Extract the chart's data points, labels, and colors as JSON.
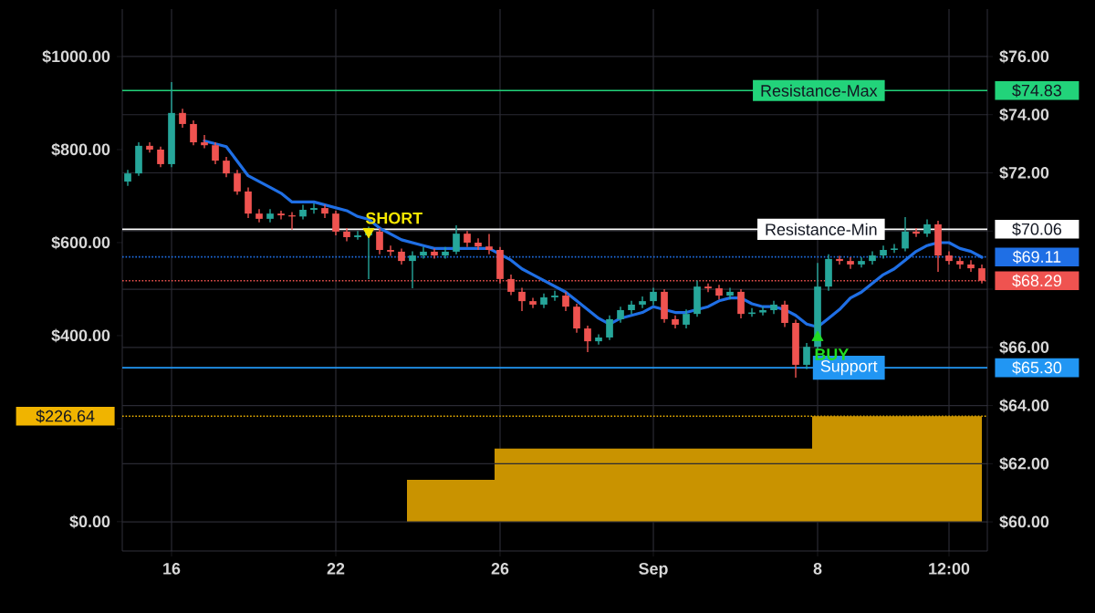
{
  "chart_data": {
    "type": "candlestick",
    "categories": [
      null,
      null,
      null,
      null,
      "16",
      null,
      null,
      null,
      null,
      null,
      null,
      null,
      null,
      null,
      null,
      null,
      null,
      null,
      null,
      "22",
      null,
      null,
      null,
      null,
      null,
      null,
      null,
      null,
      null,
      null,
      null,
      null,
      null,
      null,
      "26",
      null,
      null,
      null,
      null,
      null,
      null,
      null,
      null,
      null,
      null,
      null,
      null,
      null,
      "Sep",
      null,
      null,
      null,
      null,
      null,
      null,
      null,
      null,
      null,
      null,
      null,
      null,
      null,
      null,
      "8",
      null,
      null,
      null,
      null,
      null,
      null,
      null,
      null,
      null,
      null,
      null,
      "12:00",
      null,
      null,
      null
    ],
    "series": [
      {
        "type": "area",
        "axis": "y",
        "color": "#c99300",
        "values": [
          0,
          0,
          0,
          0,
          0,
          0,
          0,
          0,
          0,
          0,
          0,
          0,
          0,
          0,
          0,
          0,
          0,
          0,
          0,
          0,
          0,
          0,
          0,
          0,
          0,
          0,
          90,
          90,
          90,
          90,
          90,
          90,
          90,
          90,
          157,
          157,
          157,
          157,
          157,
          157,
          157,
          157,
          157,
          157,
          157,
          157,
          157,
          157,
          157,
          157,
          157,
          157,
          157,
          157,
          157,
          157,
          157,
          157,
          157,
          157,
          157,
          157,
          157,
          226.64,
          226.64,
          226.64,
          226.64,
          226.64,
          226.64,
          226.64,
          226.64,
          226.64,
          226.64,
          226.64,
          226.64,
          226.64,
          226.64,
          226.64,
          226.64
        ]
      },
      {
        "type": "line",
        "axis": "y2",
        "color": "#1f6fe5",
        "values": [
          null,
          null,
          null,
          null,
          null,
          null,
          null,
          73.1,
          73.0,
          72.9,
          72.4,
          71.9,
          71.7,
          71.5,
          71.3,
          71.0,
          71.0,
          71.0,
          70.9,
          70.8,
          70.7,
          70.5,
          70.4,
          70.1,
          69.9,
          69.7,
          69.6,
          69.5,
          69.4,
          69.4,
          69.4,
          69.4,
          69.4,
          69.4,
          69.2,
          69.0,
          68.7,
          68.5,
          68.3,
          68.1,
          67.9,
          67.6,
          67.3,
          67.0,
          66.8,
          67.0,
          67.1,
          67.2,
          67.4,
          67.3,
          67.2,
          67.2,
          67.3,
          67.4,
          67.6,
          67.7,
          67.7,
          67.5,
          67.4,
          67.4,
          67.3,
          67.1,
          66.8,
          66.7,
          67.0,
          67.3,
          67.7,
          67.9,
          68.2,
          68.5,
          68.7,
          69.0,
          69.3,
          69.5,
          69.6,
          69.6,
          69.4,
          69.3,
          69.1
        ]
      },
      {
        "axis": "y2",
        "ohlc": [
          [
            71.7,
            72.1,
            71.55,
            71.98
          ],
          [
            71.98,
            73.05,
            71.9,
            72.93
          ],
          [
            72.93,
            73.05,
            72.7,
            72.8
          ],
          [
            72.8,
            72.9,
            72.2,
            72.3
          ],
          [
            72.3,
            75.12,
            72.2,
            74.06
          ],
          [
            74.06,
            74.2,
            73.55,
            73.68
          ],
          [
            73.68,
            73.8,
            72.95,
            73.05
          ],
          [
            73.05,
            73.3,
            72.85,
            72.95
          ],
          [
            72.95,
            73.05,
            72.3,
            72.42
          ],
          [
            72.42,
            72.55,
            71.85,
            71.98
          ],
          [
            71.98,
            72.1,
            71.25,
            71.36
          ],
          [
            71.36,
            71.5,
            70.45,
            70.6
          ],
          [
            70.6,
            70.75,
            70.3,
            70.42
          ],
          [
            70.42,
            70.75,
            70.3,
            70.6
          ],
          [
            70.6,
            70.7,
            70.4,
            70.54
          ],
          [
            70.54,
            70.65,
            70.05,
            70.5
          ],
          [
            70.5,
            70.9,
            70.4,
            70.73
          ],
          [
            70.73,
            70.95,
            70.6,
            70.79
          ],
          [
            70.79,
            70.9,
            70.45,
            70.6
          ],
          [
            70.6,
            70.7,
            69.85,
            69.98
          ],
          [
            69.98,
            70.1,
            69.65,
            69.79
          ],
          [
            69.79,
            70.0,
            69.7,
            69.85
          ],
          [
            69.85,
            70.15,
            68.35,
            69.98
          ],
          [
            69.98,
            70.1,
            69.2,
            69.35
          ],
          [
            69.35,
            69.5,
            69.15,
            69.29
          ],
          [
            69.29,
            69.4,
            68.85,
            68.97
          ],
          [
            68.97,
            69.3,
            68.03,
            69.16
          ],
          [
            69.16,
            69.45,
            69.05,
            69.29
          ],
          [
            69.29,
            69.4,
            69.05,
            69.16
          ],
          [
            69.16,
            69.45,
            69.05,
            69.29
          ],
          [
            69.29,
            70.2,
            69.2,
            69.91
          ],
          [
            69.91,
            70.0,
            69.45,
            69.6
          ],
          [
            69.6,
            69.75,
            69.35,
            69.47
          ],
          [
            69.47,
            69.9,
            69.2,
            69.35
          ],
          [
            69.35,
            69.45,
            68.2,
            68.35
          ],
          [
            68.35,
            68.5,
            67.8,
            67.91
          ],
          [
            67.91,
            68.05,
            67.25,
            67.59
          ],
          [
            67.59,
            67.7,
            67.35,
            67.47
          ],
          [
            67.47,
            67.85,
            67.35,
            67.72
          ],
          [
            67.72,
            67.95,
            67.6,
            67.78
          ],
          [
            67.78,
            67.9,
            67.25,
            67.4
          ],
          [
            67.4,
            67.5,
            66.5,
            66.65
          ],
          [
            66.65,
            66.75,
            65.84,
            66.21
          ],
          [
            66.21,
            66.45,
            66.1,
            66.34
          ],
          [
            66.34,
            67.1,
            66.25,
            66.97
          ],
          [
            66.97,
            67.4,
            66.85,
            67.28
          ],
          [
            67.28,
            67.6,
            67.15,
            67.47
          ],
          [
            67.47,
            67.75,
            67.35,
            67.59
          ],
          [
            67.59,
            68.05,
            67.45,
            67.91
          ],
          [
            67.91,
            68.0,
            66.85,
            66.97
          ],
          [
            66.97,
            67.1,
            66.65,
            66.78
          ],
          [
            66.78,
            67.3,
            66.65,
            67.15
          ],
          [
            67.15,
            68.3,
            67.05,
            68.09
          ],
          [
            68.09,
            68.2,
            67.9,
            68.03
          ],
          [
            68.03,
            68.15,
            67.65,
            67.78
          ],
          [
            67.78,
            68.05,
            67.65,
            67.91
          ],
          [
            67.91,
            68.0,
            67.0,
            67.15
          ],
          [
            67.15,
            67.35,
            67.05,
            67.2
          ],
          [
            67.2,
            67.4,
            67.1,
            67.28
          ],
          [
            67.28,
            67.6,
            67.15,
            67.47
          ],
          [
            67.47,
            67.6,
            66.7,
            66.84
          ],
          [
            66.84,
            66.95,
            64.96,
            65.4
          ],
          [
            65.4,
            66.15,
            65.25,
            66.02
          ],
          [
            66.02,
            68.9,
            65.9,
            68.09
          ],
          [
            68.09,
            69.2,
            67.95,
            69.04
          ],
          [
            69.04,
            69.15,
            68.85,
            68.97
          ],
          [
            68.97,
            69.1,
            68.7,
            68.85
          ],
          [
            68.85,
            69.1,
            68.75,
            68.97
          ],
          [
            68.97,
            69.3,
            68.85,
            69.16
          ],
          [
            69.16,
            69.5,
            69.05,
            69.35
          ],
          [
            69.35,
            69.55,
            69.25,
            69.4
          ],
          [
            69.4,
            70.48,
            69.3,
            69.98
          ],
          [
            69.98,
            70.1,
            69.8,
            69.91
          ],
          [
            69.91,
            70.4,
            69.8,
            70.23
          ],
          [
            70.23,
            70.35,
            68.6,
            69.16
          ],
          [
            69.16,
            69.3,
            68.85,
            68.97
          ],
          [
            68.97,
            69.1,
            68.7,
            68.85
          ],
          [
            68.85,
            69.0,
            68.6,
            68.72
          ],
          [
            68.72,
            68.85,
            68.2,
            68.29
          ]
        ],
        "colors": [
          "#26a69a",
          "#26a69a",
          "#ef5350",
          "#ef5350",
          "#26a69a",
          "#ef5350",
          "#ef5350",
          "#ef5350",
          "#ef5350",
          "#ef5350",
          "#ef5350",
          "#ef5350",
          "#ef5350",
          "#26a69a",
          "#ef5350",
          "#ef5350",
          "#26a69a",
          "#26a69a",
          "#ef5350",
          "#ef5350",
          "#ef5350",
          "#26a69a",
          "#26a69a",
          "#ef5350",
          "#ef5350",
          "#ef5350",
          "#26a69a",
          "#26a69a",
          "#ef5350",
          "#26a69a",
          "#26a69a",
          "#ef5350",
          "#ef5350",
          "#ef5350",
          "#ef5350",
          "#ef5350",
          "#ef5350",
          "#ef5350",
          "#26a69a",
          "#26a69a",
          "#ef5350",
          "#ef5350",
          "#ef5350",
          "#26a69a",
          "#26a69a",
          "#26a69a",
          "#26a69a",
          "#26a69a",
          "#26a69a",
          "#ef5350",
          "#ef5350",
          "#26a69a",
          "#26a69a",
          "#ef5350",
          "#ef5350",
          "#26a69a",
          "#ef5350",
          "#26a69a",
          "#26a69a",
          "#26a69a",
          "#ef5350",
          "#ef5350",
          "#26a69a",
          "#26a69a",
          "#26a69a",
          "#ef5350",
          "#ef5350",
          "#26a69a",
          "#26a69a",
          "#26a69a",
          "#26a69a",
          "#26a69a",
          "#ef5350",
          "#26a69a",
          "#ef5350",
          "#ef5350",
          "#ef5350",
          "#ef5350",
          "#ef5350"
        ]
      },
      {
        "type": "scatter",
        "axis": "y2",
        "name": "SHORT",
        "color": "#f5e600",
        "marker": "triangle",
        "values": [
          null,
          null,
          null,
          null,
          null,
          null,
          null,
          null,
          null,
          null,
          null,
          null,
          null,
          null,
          null,
          null,
          null,
          null,
          null,
          null,
          null,
          null,
          69.98,
          null,
          null,
          null,
          null,
          null,
          null,
          null,
          null,
          null,
          null,
          null,
          null,
          null,
          null,
          null,
          null,
          null,
          null,
          null,
          null,
          null,
          null,
          null,
          null,
          null,
          null,
          null,
          null,
          null,
          null,
          null,
          null,
          null,
          null,
          null,
          null,
          null,
          null,
          null,
          null,
          null,
          null,
          null,
          null,
          null,
          null,
          null,
          null,
          null,
          null,
          null,
          null,
          null,
          null,
          null,
          null
        ]
      },
      {
        "type": "scatter",
        "axis": "y2",
        "name": "BUY",
        "color": "#22dd22",
        "marker": "triangle",
        "values": [
          null,
          null,
          null,
          null,
          null,
          null,
          null,
          null,
          null,
          null,
          null,
          null,
          null,
          null,
          null,
          null,
          null,
          null,
          null,
          null,
          null,
          null,
          null,
          null,
          null,
          null,
          null,
          null,
          null,
          null,
          null,
          null,
          null,
          null,
          null,
          null,
          null,
          null,
          null,
          null,
          null,
          null,
          null,
          null,
          null,
          null,
          null,
          null,
          null,
          null,
          null,
          null,
          null,
          null,
          null,
          null,
          null,
          null,
          null,
          null,
          null,
          null,
          null,
          66.34,
          null,
          null,
          null,
          null,
          null,
          null,
          null,
          null,
          null,
          null,
          null,
          null,
          null,
          null,
          null
        ]
      }
    ],
    "ylim": [
      -63,
      1102
    ],
    "yticks": [
      {
        "value": 0,
        "label": "$0.00"
      },
      {
        "value": 200,
        "label": null
      },
      {
        "value": 400,
        "label": "$400.00"
      },
      {
        "value": 600,
        "label": "$600.00"
      },
      {
        "value": 800,
        "label": "$800.00"
      },
      {
        "value": 1000,
        "label": "$1000.00"
      }
    ],
    "y2lim": [
      59,
      77.63
    ],
    "y2ticks": [
      {
        "value": 60,
        "label": "$60.00"
      },
      {
        "value": 62,
        "label": "$62.00"
      },
      {
        "value": 64,
        "label": "$64.00"
      },
      {
        "value": 66,
        "label": "$66.00"
      },
      {
        "value": 68,
        "label": null
      },
      {
        "value": 70,
        "label": null
      },
      {
        "value": 72,
        "label": "$72.00"
      },
      {
        "value": 74,
        "label": "$74.00"
      },
      {
        "value": 76,
        "label": "$76.00"
      }
    ],
    "grid": true,
    "ref_lines": [
      {
        "axis": "y2",
        "value": 74.83,
        "label": "Resistance-Max",
        "color": "#22d37a"
      },
      {
        "axis": "y2",
        "value": 70.06,
        "label": "Resistance-Min",
        "color": "#ffffff"
      },
      {
        "axis": "y2",
        "value": 65.3,
        "label": "Support",
        "color": "#2196f3"
      },
      {
        "axis": "y2",
        "value": 69.11,
        "label": "$69.11",
        "color": "#1f6fe5",
        "line_style": "dotted"
      },
      {
        "axis": "y2",
        "value": 68.29,
        "label": "$68.29",
        "color": "#ef5350",
        "line_style": "dotted"
      },
      {
        "axis": "y",
        "value": 226.64,
        "label": "$226.64",
        "color": "#f0b400",
        "line_style": "dotted"
      }
    ],
    "annotations": [
      "$74.83",
      "$70.06",
      "$65.30"
    ]
  }
}
